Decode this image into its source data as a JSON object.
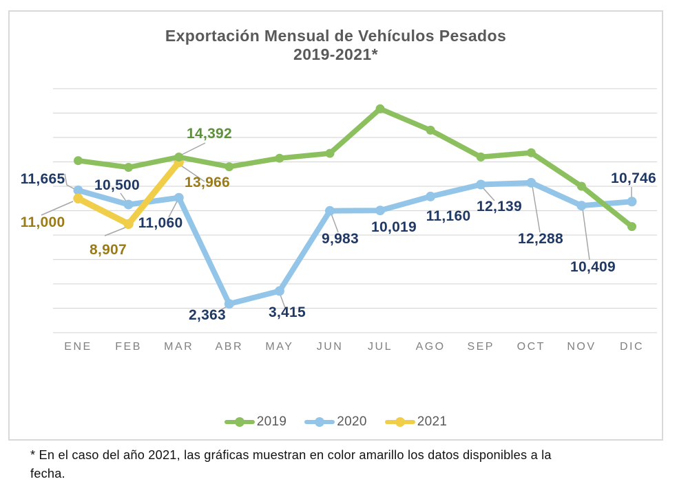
{
  "title": {
    "line1": "Exportación Mensual de Vehículos Pesados",
    "line2": "2019-2021*"
  },
  "chart_data": {
    "type": "line",
    "title": "Exportación Mensual de Vehículos Pesados 2019-2021*",
    "categories": [
      "ENE",
      "FEB",
      "MAR",
      "ABR",
      "MAY",
      "JUN",
      "JUL",
      "AGO",
      "SEP",
      "OCT",
      "NOV",
      "DIC"
    ],
    "ylim": [
      0,
      20000
    ],
    "gridline_step": 2000,
    "grid": true,
    "y_axis_labels_visible": false,
    "legend_position": "bottom",
    "series": [
      {
        "name": "2019",
        "color": "#8CC05E",
        "label_color": "#5E8F3E",
        "values": [
          14100,
          13550,
          14392,
          13600,
          14300,
          14700,
          18350,
          16600,
          14400,
          14750,
          12000,
          8700
        ],
        "value_labels": [
          {
            "i": 2,
            "text": "14,392"
          }
        ]
      },
      {
        "name": "2020",
        "color": "#92C5E8",
        "label_color": "#1F3864",
        "values": [
          11665,
          10500,
          11060,
          2363,
          3415,
          9983,
          10019,
          11160,
          12139,
          12288,
          10409,
          10746
        ],
        "value_labels": [
          {
            "i": 0,
            "text": "11,665"
          },
          {
            "i": 1,
            "text": "10,500"
          },
          {
            "i": 2,
            "text": "11,060"
          },
          {
            "i": 3,
            "text": "2,363"
          },
          {
            "i": 4,
            "text": "3,415"
          },
          {
            "i": 5,
            "text": "9,983"
          },
          {
            "i": 6,
            "text": "10,019"
          },
          {
            "i": 7,
            "text": "11,160"
          },
          {
            "i": 8,
            "text": "12,139"
          },
          {
            "i": 9,
            "text": "12,288"
          },
          {
            "i": 10,
            "text": "10,409"
          },
          {
            "i": 11,
            "text": "10,746"
          }
        ]
      },
      {
        "name": "2021",
        "color": "#F0CE49",
        "label_color": "#9A7B18",
        "values": [
          11000,
          8907,
          13966
        ],
        "value_labels": [
          {
            "i": 0,
            "text": "11,000"
          },
          {
            "i": 1,
            "text": "8,907"
          },
          {
            "i": 2,
            "text": "13,966"
          }
        ]
      }
    ]
  },
  "legend": {
    "items": [
      {
        "label": "2019",
        "color": "#8CC05E"
      },
      {
        "label": "2020",
        "color": "#92C5E8"
      },
      {
        "label": "2021",
        "color": "#F0CE49"
      }
    ]
  },
  "footnote": {
    "line1": "* En el caso del año 2021, las gráficas muestran en color amarillo los datos disponibles a la",
    "line2": "fecha."
  },
  "colors": {
    "title_text": "#595959",
    "axis_text": "#808080",
    "gridline": "#D9D9D9",
    "leader_line": "#A6A6A6",
    "panel_border": "#D9D9D9"
  }
}
